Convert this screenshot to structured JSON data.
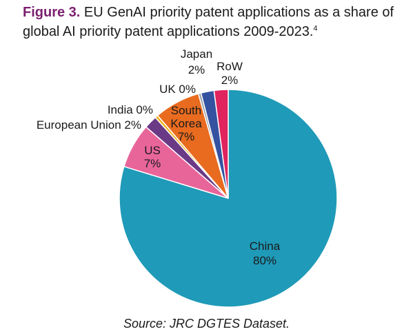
{
  "title": {
    "figure_label": "Figure 3.",
    "text": " EU GenAI priority patent applications as a share of global AI priority patent applications 2009-2023.",
    "footnote": "4"
  },
  "source": "Source: JRC DGTES Dataset.",
  "chart_data": {
    "type": "pie",
    "slices": [
      {
        "name": "China",
        "value": 80,
        "label_lines": [
          "China",
          "80%"
        ],
        "color": "#1f9ab8"
      },
      {
        "name": "US",
        "value": 7,
        "label_lines": [
          "US",
          "7%"
        ],
        "color": "#e8659a"
      },
      {
        "name": "European Union",
        "value": 2,
        "label_lines": [
          "European Union 2%"
        ],
        "color": "#6b3a86"
      },
      {
        "name": "India",
        "value": 0,
        "label_lines": [
          "India 0%"
        ],
        "color": "#f2b21c"
      },
      {
        "name": "South Korea",
        "value": 7,
        "label_lines": [
          "South",
          "Korea",
          "7%"
        ],
        "color": "#e86b20"
      },
      {
        "name": "UK",
        "value": 0,
        "label_lines": [
          "UK 0%"
        ],
        "color": "#9aa0a6"
      },
      {
        "name": "Japan",
        "value": 2,
        "label_lines": [
          "Japan",
          "2%"
        ],
        "color": "#3552a0"
      },
      {
        "name": "RoW",
        "value": 2,
        "label_lines": [
          "RoW",
          "2%"
        ],
        "color": "#e0245e"
      }
    ]
  }
}
